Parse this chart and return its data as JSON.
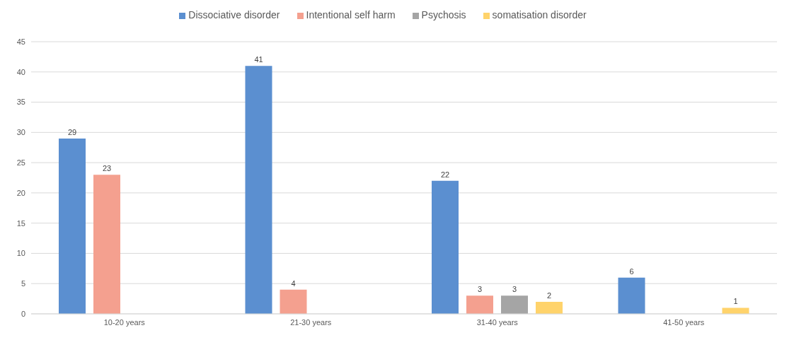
{
  "chart_data": {
    "type": "bar",
    "categories": [
      "10-20 years",
      "21-30 years",
      "31-40 years",
      "41-50 years"
    ],
    "series": [
      {
        "name": "Dissociative disorder",
        "color": "#5b8fd0",
        "values": [
          29,
          41,
          22,
          6
        ]
      },
      {
        "name": "Intentional self harm",
        "color": "#f4a08f",
        "values": [
          23,
          4,
          3,
          null
        ]
      },
      {
        "name": "Psychosis",
        "color": "#a5a5a5",
        "values": [
          null,
          null,
          3,
          null
        ]
      },
      {
        "name": "somatisation disorder",
        "color": "#ffd36b",
        "values": [
          null,
          null,
          2,
          1
        ]
      }
    ],
    "ylim": [
      0,
      45
    ],
    "yticks": [
      0,
      5,
      10,
      15,
      20,
      25,
      30,
      35,
      40,
      45
    ],
    "grid": "y",
    "legend": "top",
    "data_labels": true
  }
}
